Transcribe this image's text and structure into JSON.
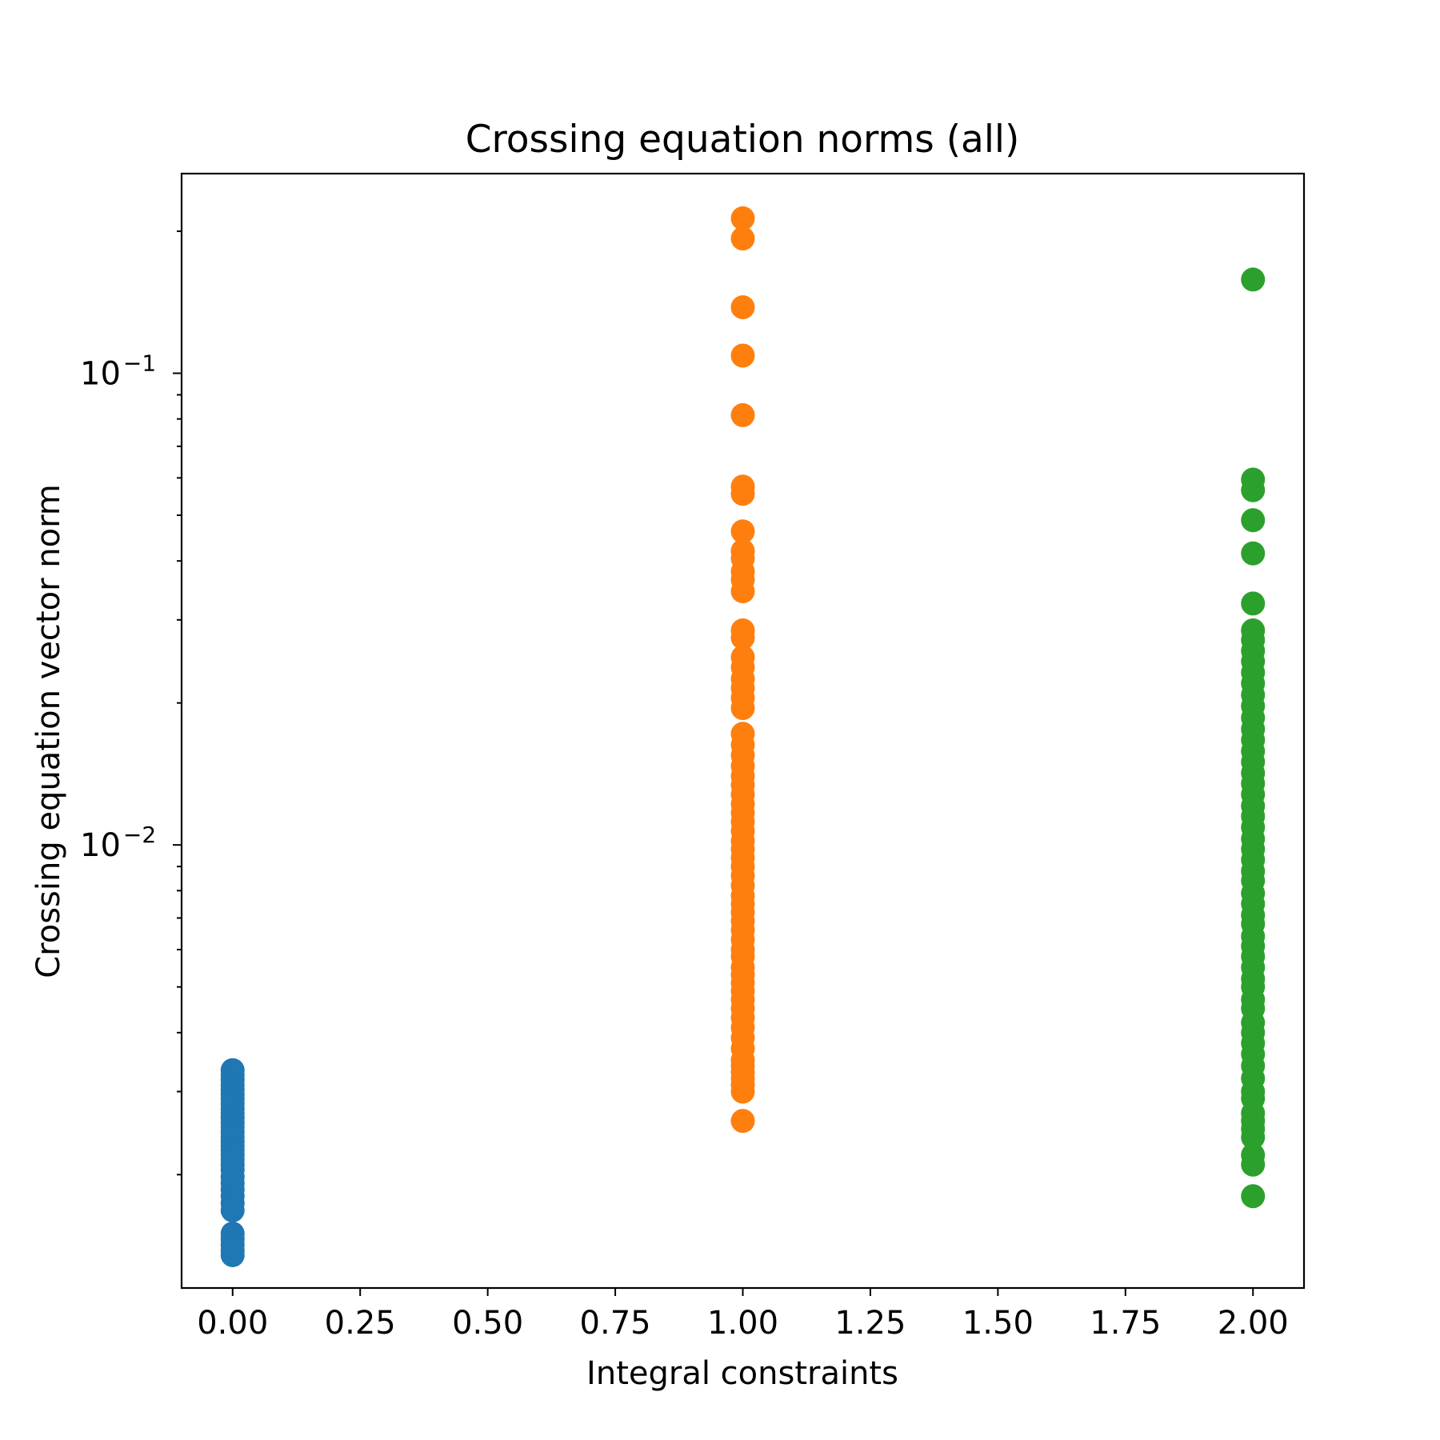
{
  "chart_data": {
    "type": "scatter",
    "title": "Crossing equation norms (all)",
    "xlabel": "Integral constraints",
    "ylabel": "Crossing equation vector norm",
    "xlim": [
      -0.1,
      2.1
    ],
    "ylim": [
      0.00115,
      0.265
    ],
    "yscale": "log",
    "grid": false,
    "x_ticks": [
      0.0,
      0.25,
      0.5,
      0.75,
      1.0,
      1.25,
      1.5,
      1.75,
      2.0
    ],
    "x_tick_labels": [
      "0.00",
      "0.25",
      "0.50",
      "0.75",
      "1.00",
      "1.25",
      "1.50",
      "1.75",
      "2.00"
    ],
    "y_major_ticks": [
      {
        "value": 0.1,
        "base": "10",
        "exponent": "−1"
      },
      {
        "value": 0.01,
        "base": "10",
        "exponent": "−2"
      }
    ],
    "y_minor_ticks": [
      0.002,
      0.003,
      0.004,
      0.005,
      0.006,
      0.007,
      0.008,
      0.009,
      0.02,
      0.03,
      0.04,
      0.05,
      0.06,
      0.07,
      0.08,
      0.09,
      0.2
    ],
    "series": [
      {
        "color": "#1f77b4",
        "x": 0,
        "y": [
          0.00333,
          0.00325,
          0.00318,
          0.0031,
          0.00303,
          0.00296,
          0.0029,
          0.00283,
          0.00276,
          0.0027,
          0.00264,
          0.00258,
          0.00252,
          0.00246,
          0.0024,
          0.00235,
          0.0023,
          0.00225,
          0.0022,
          0.00215,
          0.0021,
          0.00205,
          0.00198,
          0.00192,
          0.00186,
          0.0018,
          0.00174,
          0.00168,
          0.0015,
          0.00146,
          0.00142,
          0.00138,
          0.00135
        ]
      },
      {
        "color": "#ff7f0e",
        "x": 1,
        "y": [
          0.213,
          0.193,
          0.138,
          0.109,
          0.0815,
          0.0575,
          0.0555,
          0.0462,
          0.042,
          0.0405,
          0.038,
          0.0365,
          0.0345,
          0.0285,
          0.0275,
          0.025,
          0.0238,
          0.0225,
          0.0215,
          0.0205,
          0.0195,
          0.0172,
          0.0163,
          0.0155,
          0.0147,
          0.014,
          0.0134,
          0.0128,
          0.0122,
          0.0117,
          0.0112,
          0.0107,
          0.0102,
          0.0098,
          0.0094,
          0.009,
          0.0086,
          0.0082,
          0.0078,
          0.0075,
          0.0072,
          0.0069,
          0.0066,
          0.0063,
          0.006,
          0.0058,
          0.0055,
          0.0053,
          0.0051,
          0.0049,
          0.0047,
          0.0045,
          0.0043,
          0.0041,
          0.0039,
          0.0037,
          0.0035,
          0.0034,
          0.0033,
          0.0032,
          0.0031,
          0.003,
          0.0026
        ]
      },
      {
        "color": "#2ca02c",
        "x": 2,
        "y": [
          0.158,
          0.0595,
          0.0565,
          0.0488,
          0.0415,
          0.0325,
          0.0285,
          0.0272,
          0.0258,
          0.0245,
          0.0232,
          0.022,
          0.0208,
          0.0197,
          0.0186,
          0.0176,
          0.0167,
          0.0158,
          0.015,
          0.0142,
          0.0135,
          0.0128,
          0.0121,
          0.0115,
          0.0109,
          0.0103,
          0.0098,
          0.0093,
          0.0088,
          0.0084,
          0.0079,
          0.0075,
          0.0071,
          0.0068,
          0.0064,
          0.0061,
          0.0058,
          0.0055,
          0.0052,
          0.005,
          0.0047,
          0.0045,
          0.0042,
          0.004,
          0.0038,
          0.0036,
          0.0034,
          0.0032,
          0.003,
          0.0029,
          0.0027,
          0.0026,
          0.0025,
          0.0024,
          0.0022,
          0.0021,
          0.0018
        ]
      }
    ]
  }
}
